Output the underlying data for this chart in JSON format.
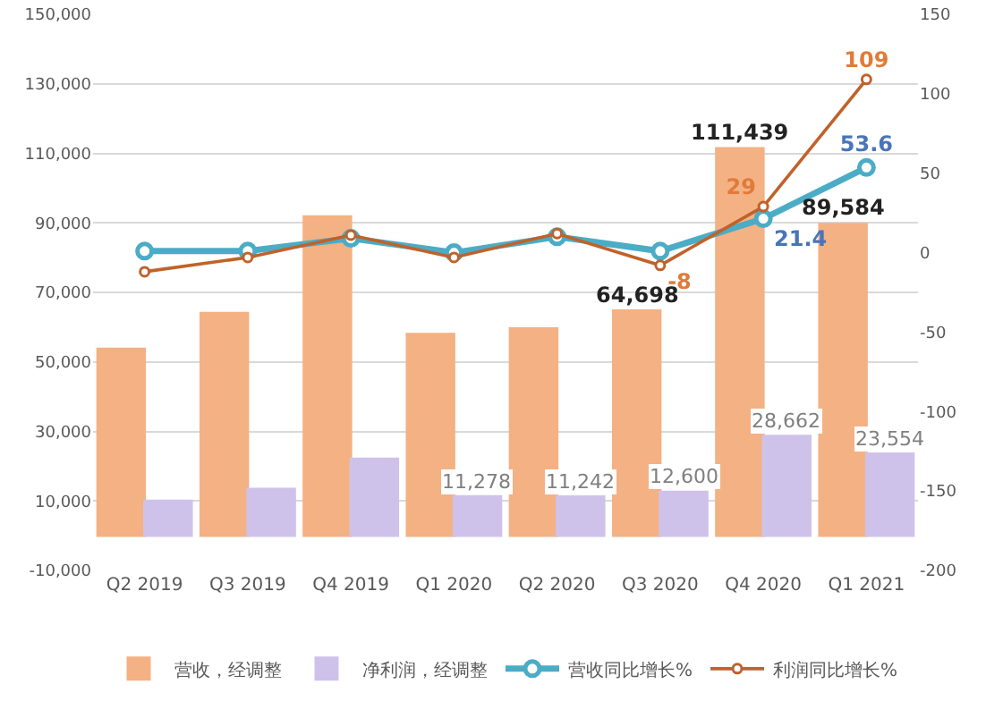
{
  "chart_data": {
    "type": "bar",
    "categories": [
      "Q2 2019",
      "Q3 2019",
      "Q4 2019",
      "Q1 2020",
      "Q2 2020",
      "Q3 2020",
      "Q4 2020",
      "Q1 2021"
    ],
    "series": [
      {
        "name": "营收，经调整",
        "color": "#f4b183",
        "values": [
          53700,
          64000,
          91800,
          58000,
          59600,
          64698,
          111439,
          89584
        ],
        "value_labels": [
          null,
          null,
          null,
          null,
          null,
          "64,698",
          "111,439",
          "89,584"
        ]
      },
      {
        "name": "净利润，经调整",
        "color": "#cfc2ea",
        "values": [
          10000,
          13400,
          22100,
          11278,
          11242,
          12600,
          28662,
          23554
        ],
        "value_labels": [
          null,
          null,
          null,
          "11,278",
          "11,242",
          "12,600",
          "28,662",
          "23,554"
        ]
      },
      {
        "name": "营收同比增长%",
        "type": "line",
        "axis": "y2",
        "color": "#4bacc6",
        "values": [
          1,
          1,
          9,
          0,
          10,
          1,
          21.4,
          53.6
        ],
        "value_labels": [
          null,
          null,
          null,
          null,
          null,
          null,
          "21.4",
          "53.6"
        ]
      },
      {
        "name": "利润同比增长%",
        "type": "line",
        "axis": "y2",
        "color": "#c0622a",
        "values": [
          -12,
          -3,
          11,
          -3,
          12,
          -8,
          29,
          109
        ],
        "value_labels": [
          null,
          null,
          null,
          null,
          null,
          "-8",
          "29",
          "109"
        ]
      }
    ],
    "ylim": [
      -10000,
      150000
    ],
    "yticks": [
      {
        "value": -10000,
        "label": "-10,000"
      },
      {
        "value": 10000,
        "label": "10,000"
      },
      {
        "value": 30000,
        "label": "30,000"
      },
      {
        "value": 50000,
        "label": "50,000"
      },
      {
        "value": 70000,
        "label": "70,000"
      },
      {
        "value": 90000,
        "label": "90,000"
      },
      {
        "value": 110000,
        "label": "110,000"
      },
      {
        "value": 130000,
        "label": "130,000"
      },
      {
        "value": 150000,
        "label": "150,000"
      }
    ],
    "y2lim": [
      -200,
      150
    ],
    "y2ticks": [
      -200,
      -150,
      -100,
      -50,
      0,
      50,
      100,
      150
    ],
    "grid": "y",
    "legend": "bottom",
    "marker": "circle",
    "line_style": "solid"
  }
}
